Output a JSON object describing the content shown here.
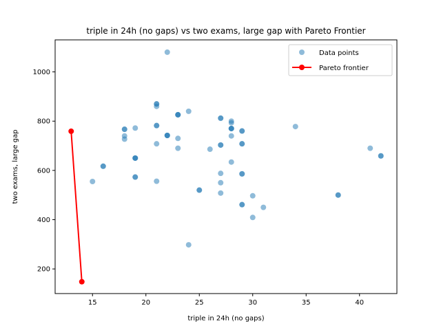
{
  "chart_data": {
    "type": "scatter",
    "title": "triple in 24h (no gaps) vs two exams, large gap with Pareto Frontier",
    "xlabel": "triple in 24h (no gaps)",
    "ylabel": "two exams, large gap",
    "xlim": [
      11.5,
      43.5
    ],
    "ylim": [
      100,
      1130
    ],
    "xticks": [
      15,
      20,
      25,
      30,
      35,
      40
    ],
    "yticks": [
      200,
      400,
      600,
      800,
      1000
    ],
    "grid": false,
    "legend_position": "top-right",
    "series": [
      {
        "name": "Data points",
        "kind": "scatter",
        "color": "#1f77b4",
        "points": [
          [
            15,
            555
          ],
          [
            16,
            617
          ],
          [
            16,
            617
          ],
          [
            18,
            767
          ],
          [
            18,
            767
          ],
          [
            18,
            740
          ],
          [
            18,
            727
          ],
          [
            19,
            772
          ],
          [
            19,
            650
          ],
          [
            19,
            650
          ],
          [
            19,
            650
          ],
          [
            19,
            573
          ],
          [
            19,
            573
          ],
          [
            21,
            870
          ],
          [
            21,
            870
          ],
          [
            21,
            860
          ],
          [
            21,
            782
          ],
          [
            21,
            782
          ],
          [
            21,
            708
          ],
          [
            21,
            556
          ],
          [
            22,
            1080
          ],
          [
            22,
            742
          ],
          [
            22,
            742
          ],
          [
            22,
            742
          ],
          [
            23,
            826
          ],
          [
            23,
            826
          ],
          [
            23,
            826
          ],
          [
            23,
            730
          ],
          [
            23,
            690
          ],
          [
            24,
            840
          ],
          [
            24,
            298
          ],
          [
            25,
            520
          ],
          [
            25,
            520
          ],
          [
            26,
            686
          ],
          [
            27,
            812
          ],
          [
            27,
            812
          ],
          [
            27,
            703
          ],
          [
            27,
            703
          ],
          [
            27,
            588
          ],
          [
            27,
            550
          ],
          [
            27,
            508
          ],
          [
            28,
            800
          ],
          [
            28,
            793
          ],
          [
            28,
            770
          ],
          [
            28,
            770
          ],
          [
            28,
            770
          ],
          [
            28,
            740
          ],
          [
            28,
            634
          ],
          [
            29,
            760
          ],
          [
            29,
            760
          ],
          [
            29,
            708
          ],
          [
            29,
            708
          ],
          [
            29,
            586
          ],
          [
            29,
            586
          ],
          [
            29,
            461
          ],
          [
            29,
            461
          ],
          [
            30,
            497
          ],
          [
            30,
            409
          ],
          [
            31,
            450
          ],
          [
            34,
            778
          ],
          [
            38,
            500
          ],
          [
            38,
            500
          ],
          [
            41,
            690
          ],
          [
            42,
            659
          ],
          [
            42,
            659
          ]
        ]
      },
      {
        "name": "Pareto frontier",
        "kind": "line",
        "color": "#ff0000",
        "points": [
          [
            13,
            759
          ],
          [
            14,
            148
          ]
        ]
      }
    ]
  }
}
